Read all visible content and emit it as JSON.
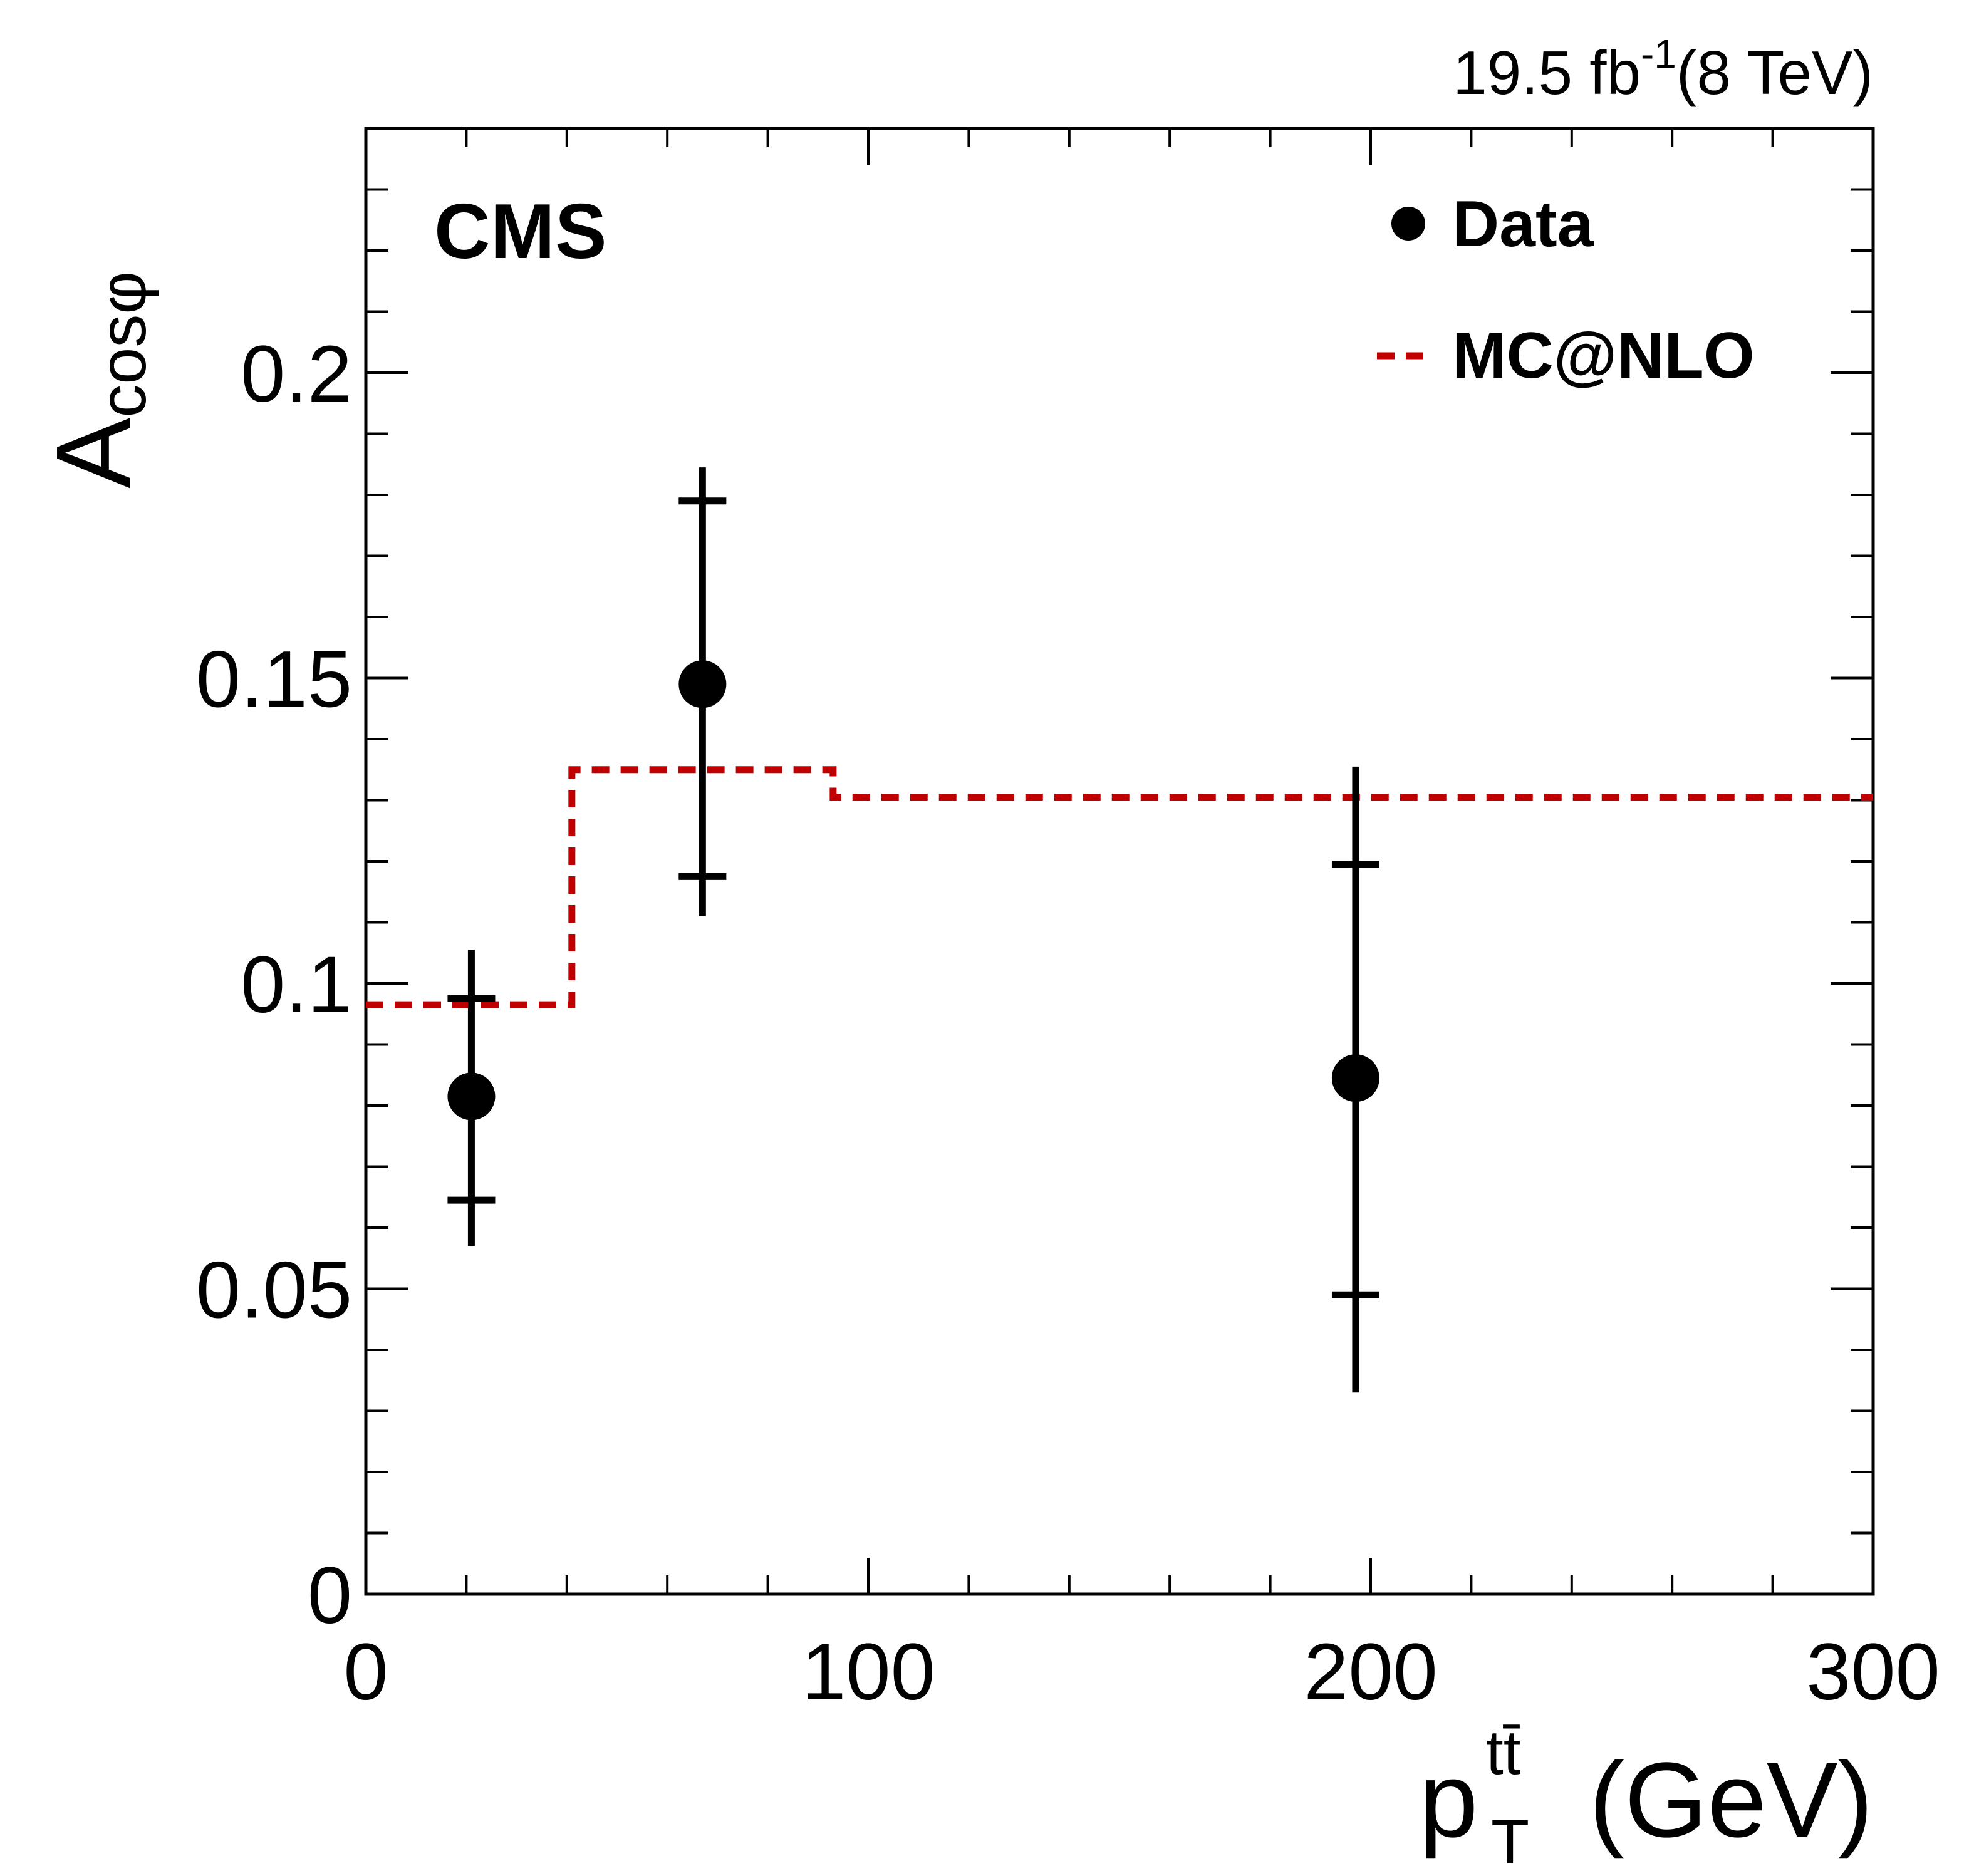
{
  "chart_data": {
    "type": "scatter",
    "header_right": {
      "lumi": "19.5 fb",
      "lumi_exp": "-1",
      "energy": "(8 TeV)"
    },
    "experiment": "CMS",
    "xlabel": {
      "main": "p",
      "sup": "tt̄",
      "sub": "T",
      "unit": "(GeV)"
    },
    "ylabel": {
      "main": "A",
      "sub": "cosφ"
    },
    "xlim": [
      0,
      300
    ],
    "ylim": [
      0,
      0.24
    ],
    "x_ticks": [
      {
        "value": 0,
        "label": "0"
      },
      {
        "value": 100,
        "label": "100"
      },
      {
        "value": 200,
        "label": "200"
      },
      {
        "value": 300,
        "label": "300"
      }
    ],
    "y_ticks": [
      {
        "value": 0,
        "label": "0"
      },
      {
        "value": 0.05,
        "label": "0.05"
      },
      {
        "value": 0.1,
        "label": "0.1"
      },
      {
        "value": 0.15,
        "label": "0.15"
      },
      {
        "value": 0.2,
        "label": "0.2"
      }
    ],
    "x_minor_step": 20,
    "y_minor_step": 0.01,
    "legend": [
      {
        "label": "Data",
        "marker": "dot"
      },
      {
        "label": "MC@NLO",
        "marker": "dashed-line",
        "color": "#c00000"
      }
    ],
    "series": [
      {
        "name": "Data",
        "color": "#000000",
        "points": [
          {
            "x": 21,
            "y": 0.0815,
            "stat_lo": 0.0645,
            "stat_hi": 0.0975,
            "tot_lo": 0.057,
            "tot_hi": 0.1055
          },
          {
            "x": 67,
            "y": 0.149,
            "stat_lo": 0.1175,
            "stat_hi": 0.179,
            "tot_lo": 0.111,
            "tot_hi": 0.1845
          },
          {
            "x": 197,
            "y": 0.0845,
            "stat_lo": 0.049,
            "stat_hi": 0.1195,
            "tot_lo": 0.033,
            "tot_hi": 0.1355
          }
        ]
      },
      {
        "name": "MC@NLO",
        "color": "#c00000",
        "step": true,
        "bin_edges": [
          0,
          41,
          93,
          300
        ],
        "values": [
          0.0965,
          0.135,
          0.1305
        ]
      }
    ]
  }
}
